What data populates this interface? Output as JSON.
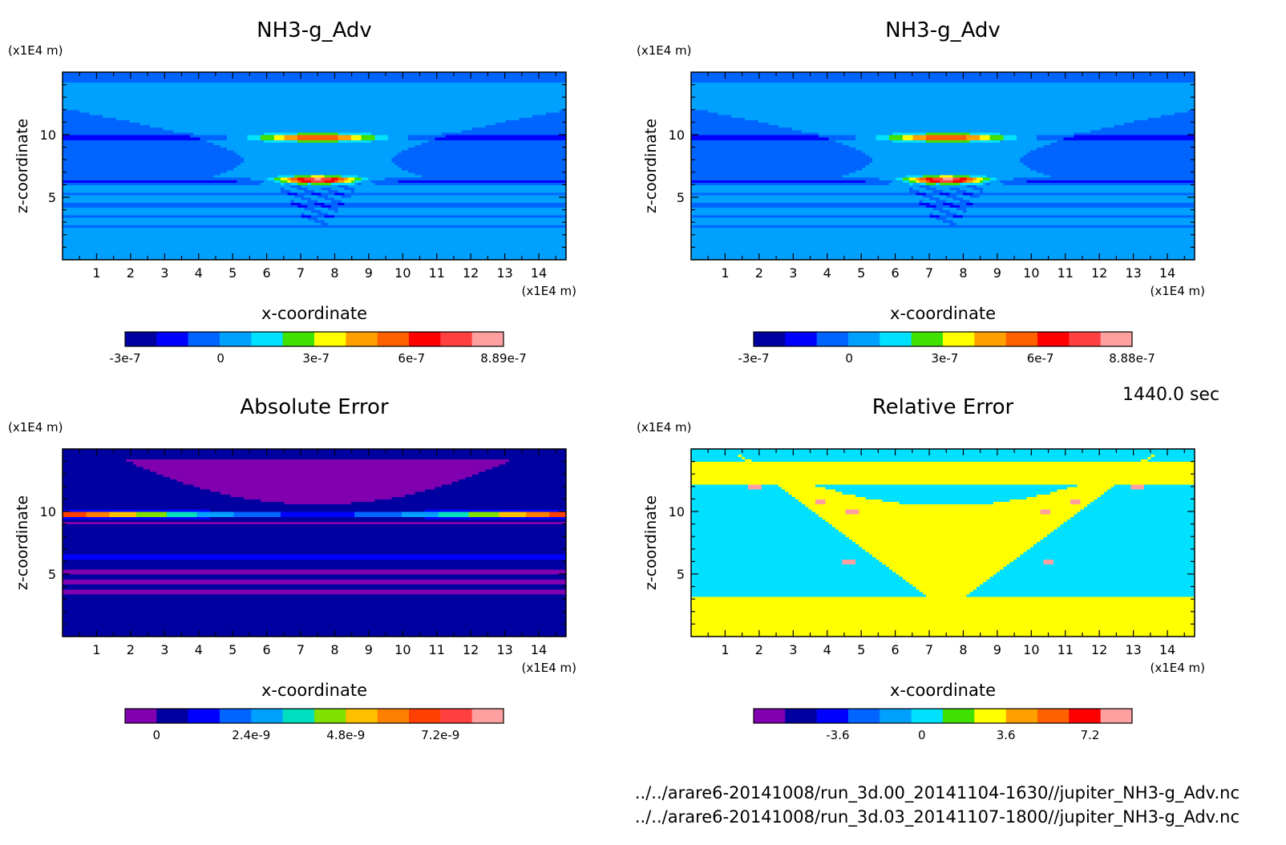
{
  "time_label": "1440.0 sec",
  "files": [
    "../../arare6-20141008/run_3d.00_20141104-1630//jupiter_NH3-g_Adv.nc",
    "../../arare6-20141008/run_3d.03_20141107-1800//jupiter_NH3-g_Adv.nc"
  ],
  "chart_data": [
    {
      "type": "heatmap",
      "title": "NH3-g_Adv",
      "xlabel": "x-coordinate",
      "ylabel": "z-coordinate",
      "x_unit": "(x1E4 m)",
      "y_unit": "(x1E4 m)",
      "xlim": [
        0,
        14.8
      ],
      "ylim": [
        0,
        15
      ],
      "x_ticks": [
        1,
        2,
        3,
        4,
        5,
        6,
        7,
        8,
        9,
        10,
        11,
        12,
        13,
        14
      ],
      "y_ticks": [
        5,
        10
      ],
      "colorbar": {
        "colors": [
          "#0000a0",
          "#0000ff",
          "#0064ff",
          "#00a0ff",
          "#00e0ff",
          "#40e000",
          "#ffff00",
          "#ffa000",
          "#ff6000",
          "#ff0000",
          "#ff4040",
          "#ffa0a0"
        ],
        "tick_labels": [
          "-3e-7",
          "0",
          "3e-7",
          "6e-7",
          "8.89e-7"
        ],
        "tick_values": [
          -3e-07,
          0,
          3e-07,
          6e-07,
          8.89e-07
        ],
        "range": [
          -3e-07,
          8.89e-07
        ]
      },
      "features": "background near 0; horizontal banding; positive maxima near x=7.5 at z=10 (~6e-7) and z=6.5 (~8.9e-7)"
    },
    {
      "type": "heatmap",
      "title": "NH3-g_Adv",
      "xlabel": "x-coordinate",
      "ylabel": "z-coordinate",
      "x_unit": "(x1E4 m)",
      "y_unit": "(x1E4 m)",
      "xlim": [
        0,
        14.8
      ],
      "ylim": [
        0,
        15
      ],
      "x_ticks": [
        1,
        2,
        3,
        4,
        5,
        6,
        7,
        8,
        9,
        10,
        11,
        12,
        13,
        14
      ],
      "y_ticks": [
        5,
        10
      ],
      "colorbar": {
        "colors": [
          "#0000a0",
          "#0000ff",
          "#0064ff",
          "#00a0ff",
          "#00e0ff",
          "#40e000",
          "#ffff00",
          "#ffa000",
          "#ff6000",
          "#ff0000",
          "#ff4040",
          "#ffa0a0"
        ],
        "tick_labels": [
          "-3e-7",
          "0",
          "3e-7",
          "6e-7",
          "8.88e-7"
        ],
        "tick_values": [
          -3e-07,
          0,
          3e-07,
          6e-07,
          8.88e-07
        ],
        "range": [
          -3e-07,
          8.88e-07
        ]
      },
      "features": "nearly identical to first panel"
    },
    {
      "type": "heatmap",
      "title": "Absolute Error",
      "xlabel": "x-coordinate",
      "ylabel": "z-coordinate",
      "x_unit": "(x1E4 m)",
      "y_unit": "(x1E4 m)",
      "xlim": [
        0,
        14.8
      ],
      "ylim": [
        0,
        15
      ],
      "x_ticks": [
        1,
        2,
        3,
        4,
        5,
        6,
        7,
        8,
        9,
        10,
        11,
        12,
        13,
        14
      ],
      "y_ticks": [
        5,
        10
      ],
      "colorbar": {
        "colors": [
          "#8000b0",
          "#0000a0",
          "#0000ff",
          "#0064ff",
          "#00a0ff",
          "#00e0c0",
          "#80e000",
          "#ffc000",
          "#ff8000",
          "#ff4000",
          "#ff4040",
          "#ffa0a0"
        ],
        "tick_labels": [
          "0",
          "2.4e-9",
          "4.8e-9",
          "7.2e-9"
        ],
        "tick_values": [
          0,
          2.4e-09,
          4.8e-09,
          7.2e-09
        ],
        "range": [
          -8e-10,
          8.8e-09
        ]
      },
      "features": "mostly near zero; strong band at z~9.8 peaking (~7.2e-9) near x<2 and x>11"
    },
    {
      "type": "heatmap",
      "title": "Relative Error",
      "xlabel": "x-coordinate",
      "ylabel": "z-coordinate",
      "x_unit": "(x1E4 m)",
      "y_unit": "(x1E4 m)",
      "xlim": [
        0,
        14.8
      ],
      "ylim": [
        0,
        15
      ],
      "x_ticks": [
        1,
        2,
        3,
        4,
        5,
        6,
        7,
        8,
        9,
        10,
        11,
        12,
        13,
        14
      ],
      "y_ticks": [
        5,
        10
      ],
      "colorbar": {
        "colors": [
          "#8000b0",
          "#0000a0",
          "#0000ff",
          "#0064ff",
          "#00a0ff",
          "#00e0ff",
          "#40e000",
          "#ffff00",
          "#ffa000",
          "#ff6000",
          "#ff0000",
          "#ffa0a0"
        ],
        "tick_labels": [
          "-3.6",
          "0",
          "3.6",
          "7.2"
        ],
        "tick_values": [
          -3.6,
          0,
          3.6,
          7.2
        ],
        "range": [
          -7.2,
          9.0
        ]
      },
      "features": "two-tone field around zero; V-shaped lighter region centered x~7.5; small hot spots along the V edges"
    }
  ]
}
